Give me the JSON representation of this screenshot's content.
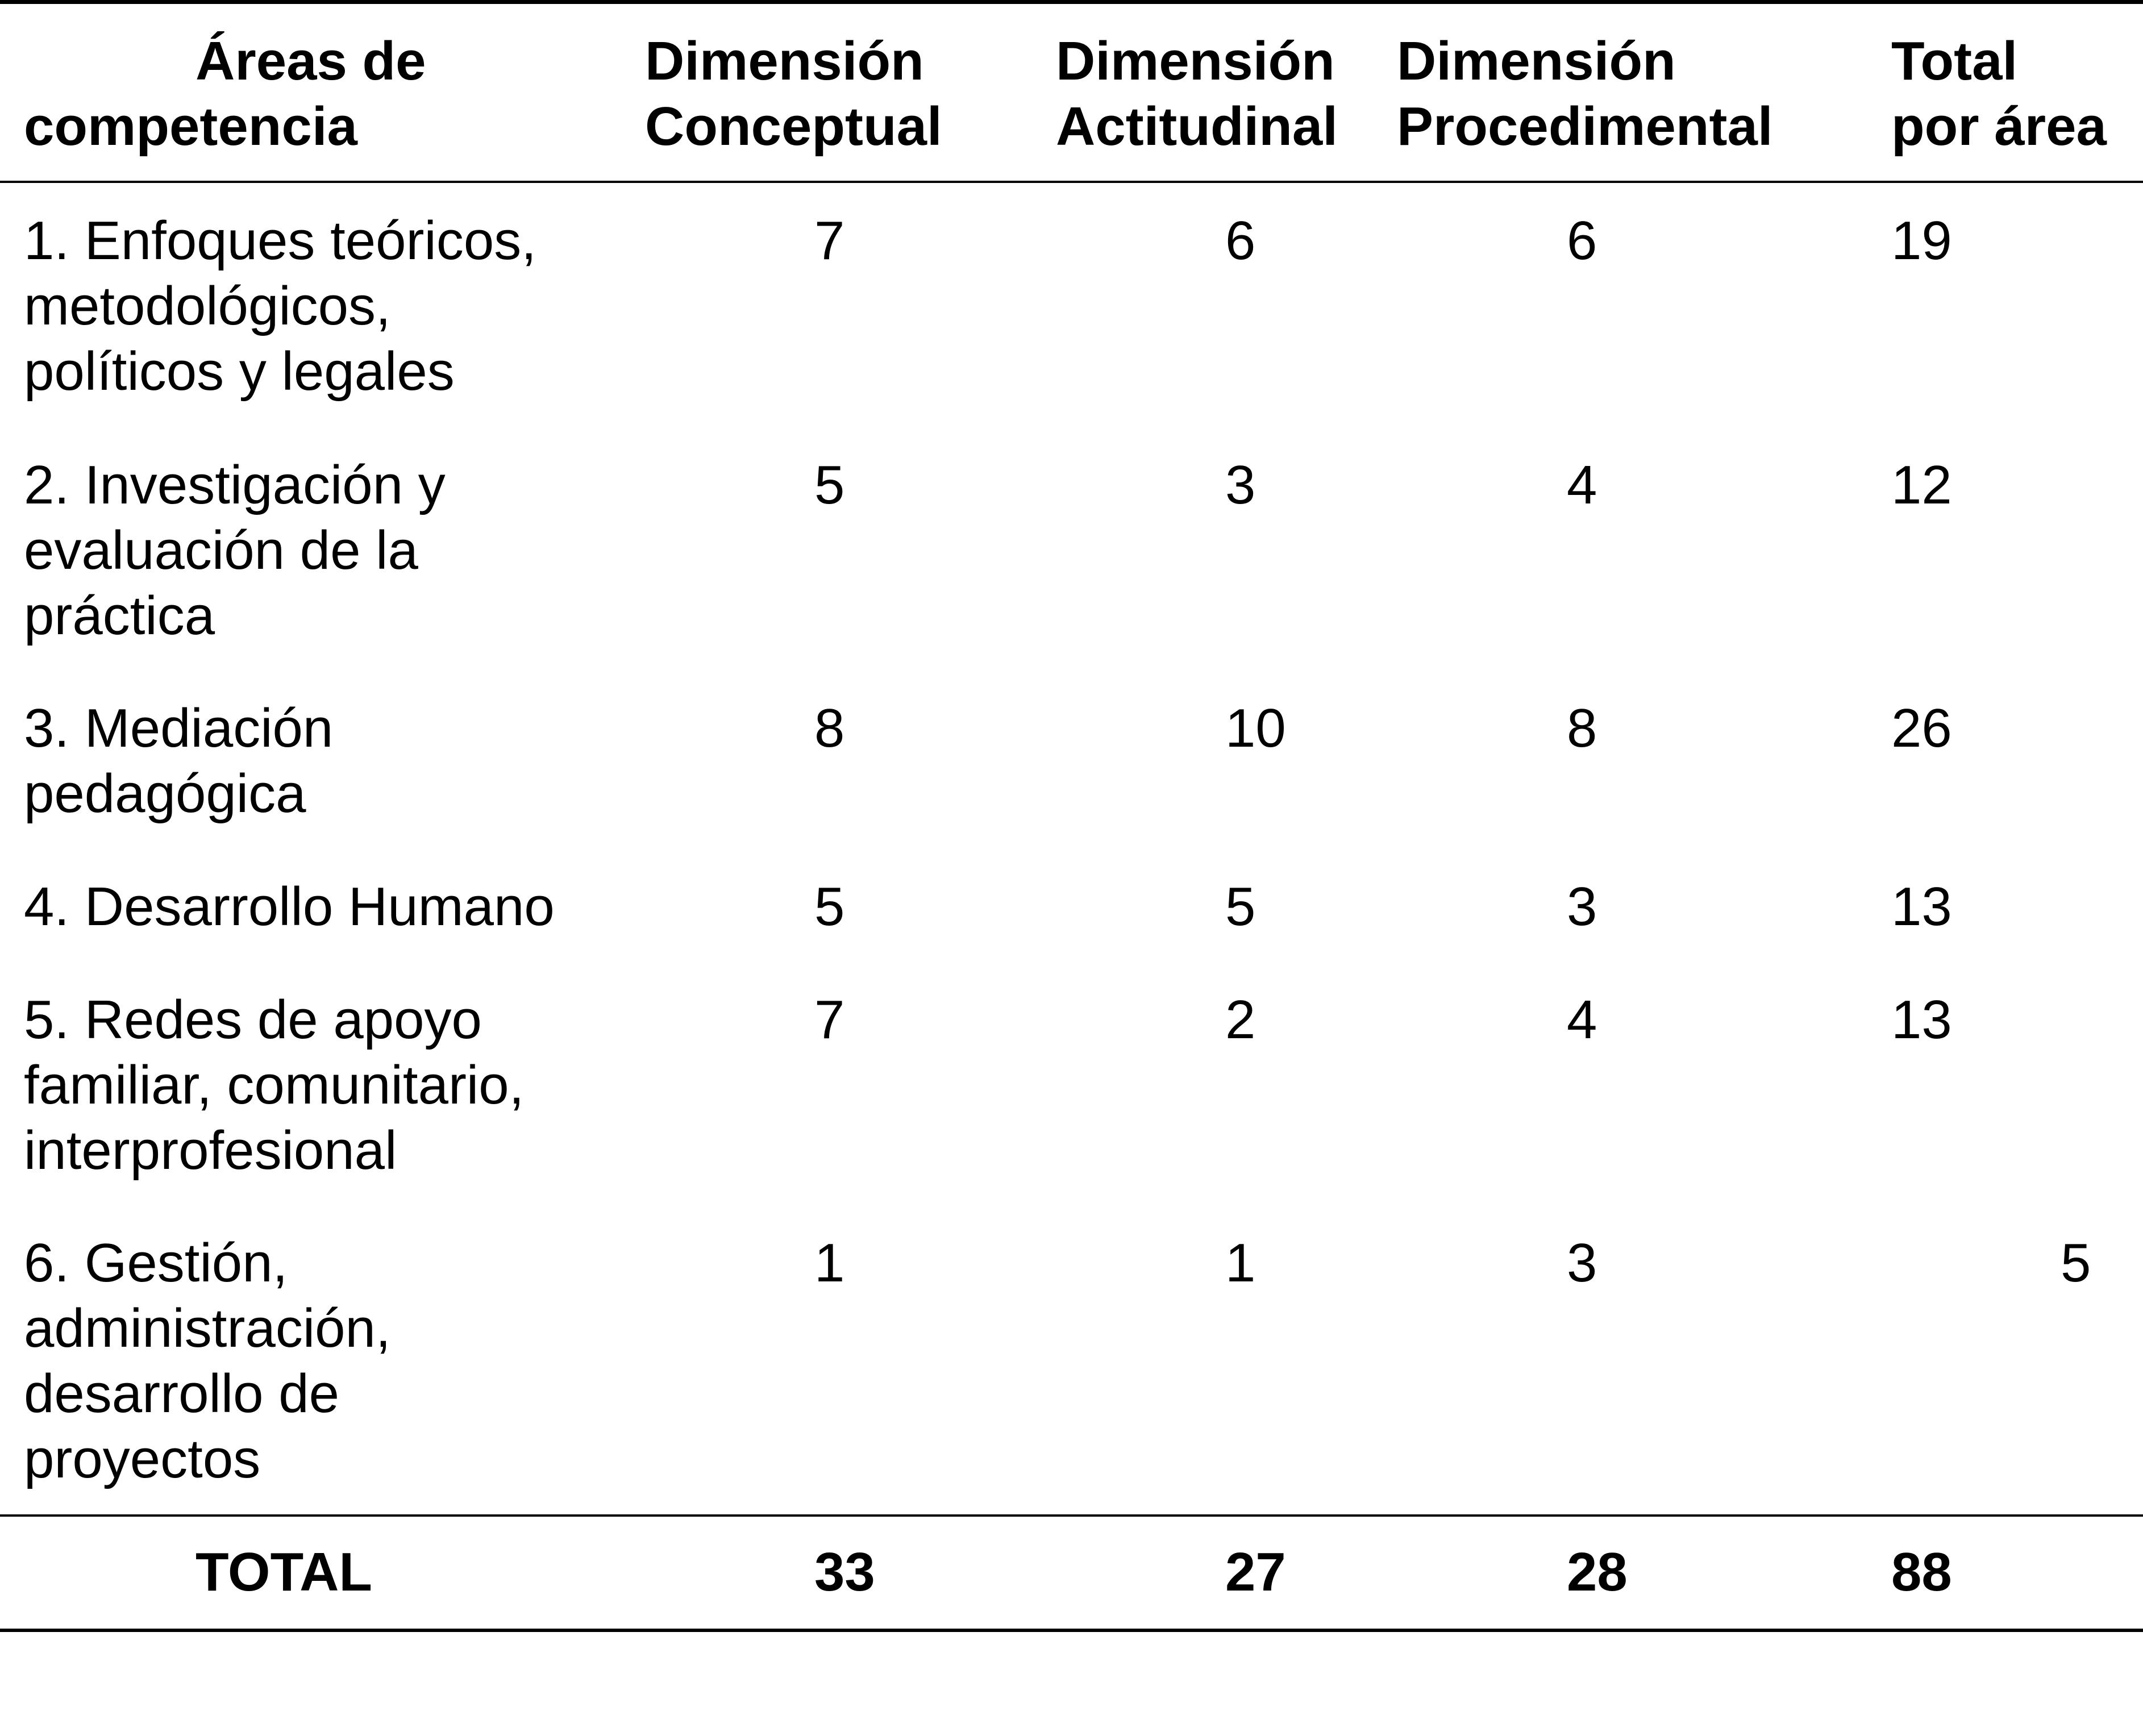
{
  "table": {
    "headers": [
      [
        "Áreas de",
        "competencia"
      ],
      [
        "Dimensión",
        "Conceptual"
      ],
      [
        "Dimensión",
        "Actitudinal"
      ],
      [
        "Dimensión",
        "Procedimental"
      ],
      [
        "Total",
        "por área"
      ]
    ],
    "rows": [
      {
        "area": [
          "1. Enfoques teóricos,",
          "metodológicos,",
          "políticos y legales"
        ],
        "conceptual": "7",
        "actitudinal": "6",
        "procedimental": "6",
        "total": "19"
      },
      {
        "area": [
          "2. Investigación y",
          "evaluación de la",
          "práctica"
        ],
        "conceptual": "5",
        "actitudinal": "3",
        "procedimental": "4",
        "total": "12"
      },
      {
        "area": [
          "3. Mediación",
          "pedagógica"
        ],
        "conceptual": "8",
        "actitudinal": "10",
        "procedimental": "8",
        "total": "26"
      },
      {
        "area": [
          "4. Desarrollo Humano"
        ],
        "conceptual": "5",
        "actitudinal": "5",
        "procedimental": "3",
        "total": "13"
      },
      {
        "area": [
          "5. Redes de apoyo",
          "familiar, comunitario,",
          "interprofesional"
        ],
        "conceptual": "7",
        "actitudinal": "2",
        "procedimental": "4",
        "total": "13"
      },
      {
        "area": [
          "6. Gestión,",
          "administración,",
          "desarrollo de",
          "proyectos"
        ],
        "conceptual": "1",
        "actitudinal": "1",
        "procedimental": "3",
        "total": "5"
      }
    ],
    "totals": {
      "label": "TOTAL",
      "conceptual": "33",
      "actitudinal": "27",
      "procedimental": "28",
      "total": "88"
    }
  }
}
